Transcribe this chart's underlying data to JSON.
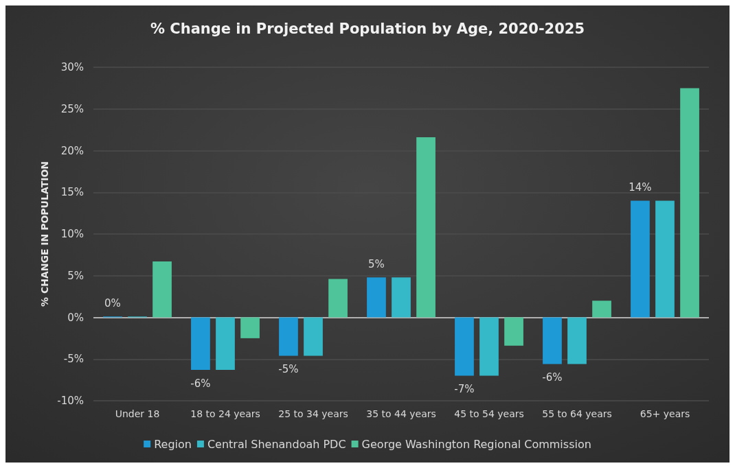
{
  "chart_data": {
    "type": "bar",
    "title": "% Change in Projected Population by Age, 2020-2025",
    "ylabel": "% CHANGE IN POPULATION",
    "categories": [
      "Under 18",
      "18 to 24 years",
      "25 to 34 years",
      "35 to 44 years",
      "45 to 54 years",
      "55 to 64 years",
      "65+ years"
    ],
    "series": [
      {
        "name": "Region",
        "color": "#1e9ad6",
        "values": [
          0.1,
          -6.3,
          -4.6,
          4.8,
          -7.0,
          -5.6,
          14.0
        ],
        "value_labels": [
          "0%",
          "-6%",
          "-5%",
          "5%",
          "-7%",
          "-6%",
          "14%"
        ]
      },
      {
        "name": "Central Shenandoah PDC",
        "color": "#35b8c8",
        "values": [
          0.1,
          -6.3,
          -4.6,
          4.8,
          -7.0,
          -5.6,
          14.0
        ]
      },
      {
        "name": "George Washington Regional Commission",
        "color": "#4fc39a",
        "values": [
          6.7,
          -2.5,
          4.6,
          21.6,
          -3.4,
          2.0,
          27.5
        ]
      }
    ],
    "ylim": [
      -10,
      30
    ],
    "yticks": [
      {
        "value": -10,
        "label": "-10%"
      },
      {
        "value": -5,
        "label": "-5%"
      },
      {
        "value": 0,
        "label": "0%"
      },
      {
        "value": 5,
        "label": "5%"
      },
      {
        "value": 10,
        "label": "10%"
      },
      {
        "value": 15,
        "label": "15%"
      },
      {
        "value": 20,
        "label": "20%"
      },
      {
        "value": 25,
        "label": "25%"
      },
      {
        "value": 30,
        "label": "30%"
      }
    ],
    "grid": "y",
    "legend": "bottom"
  }
}
